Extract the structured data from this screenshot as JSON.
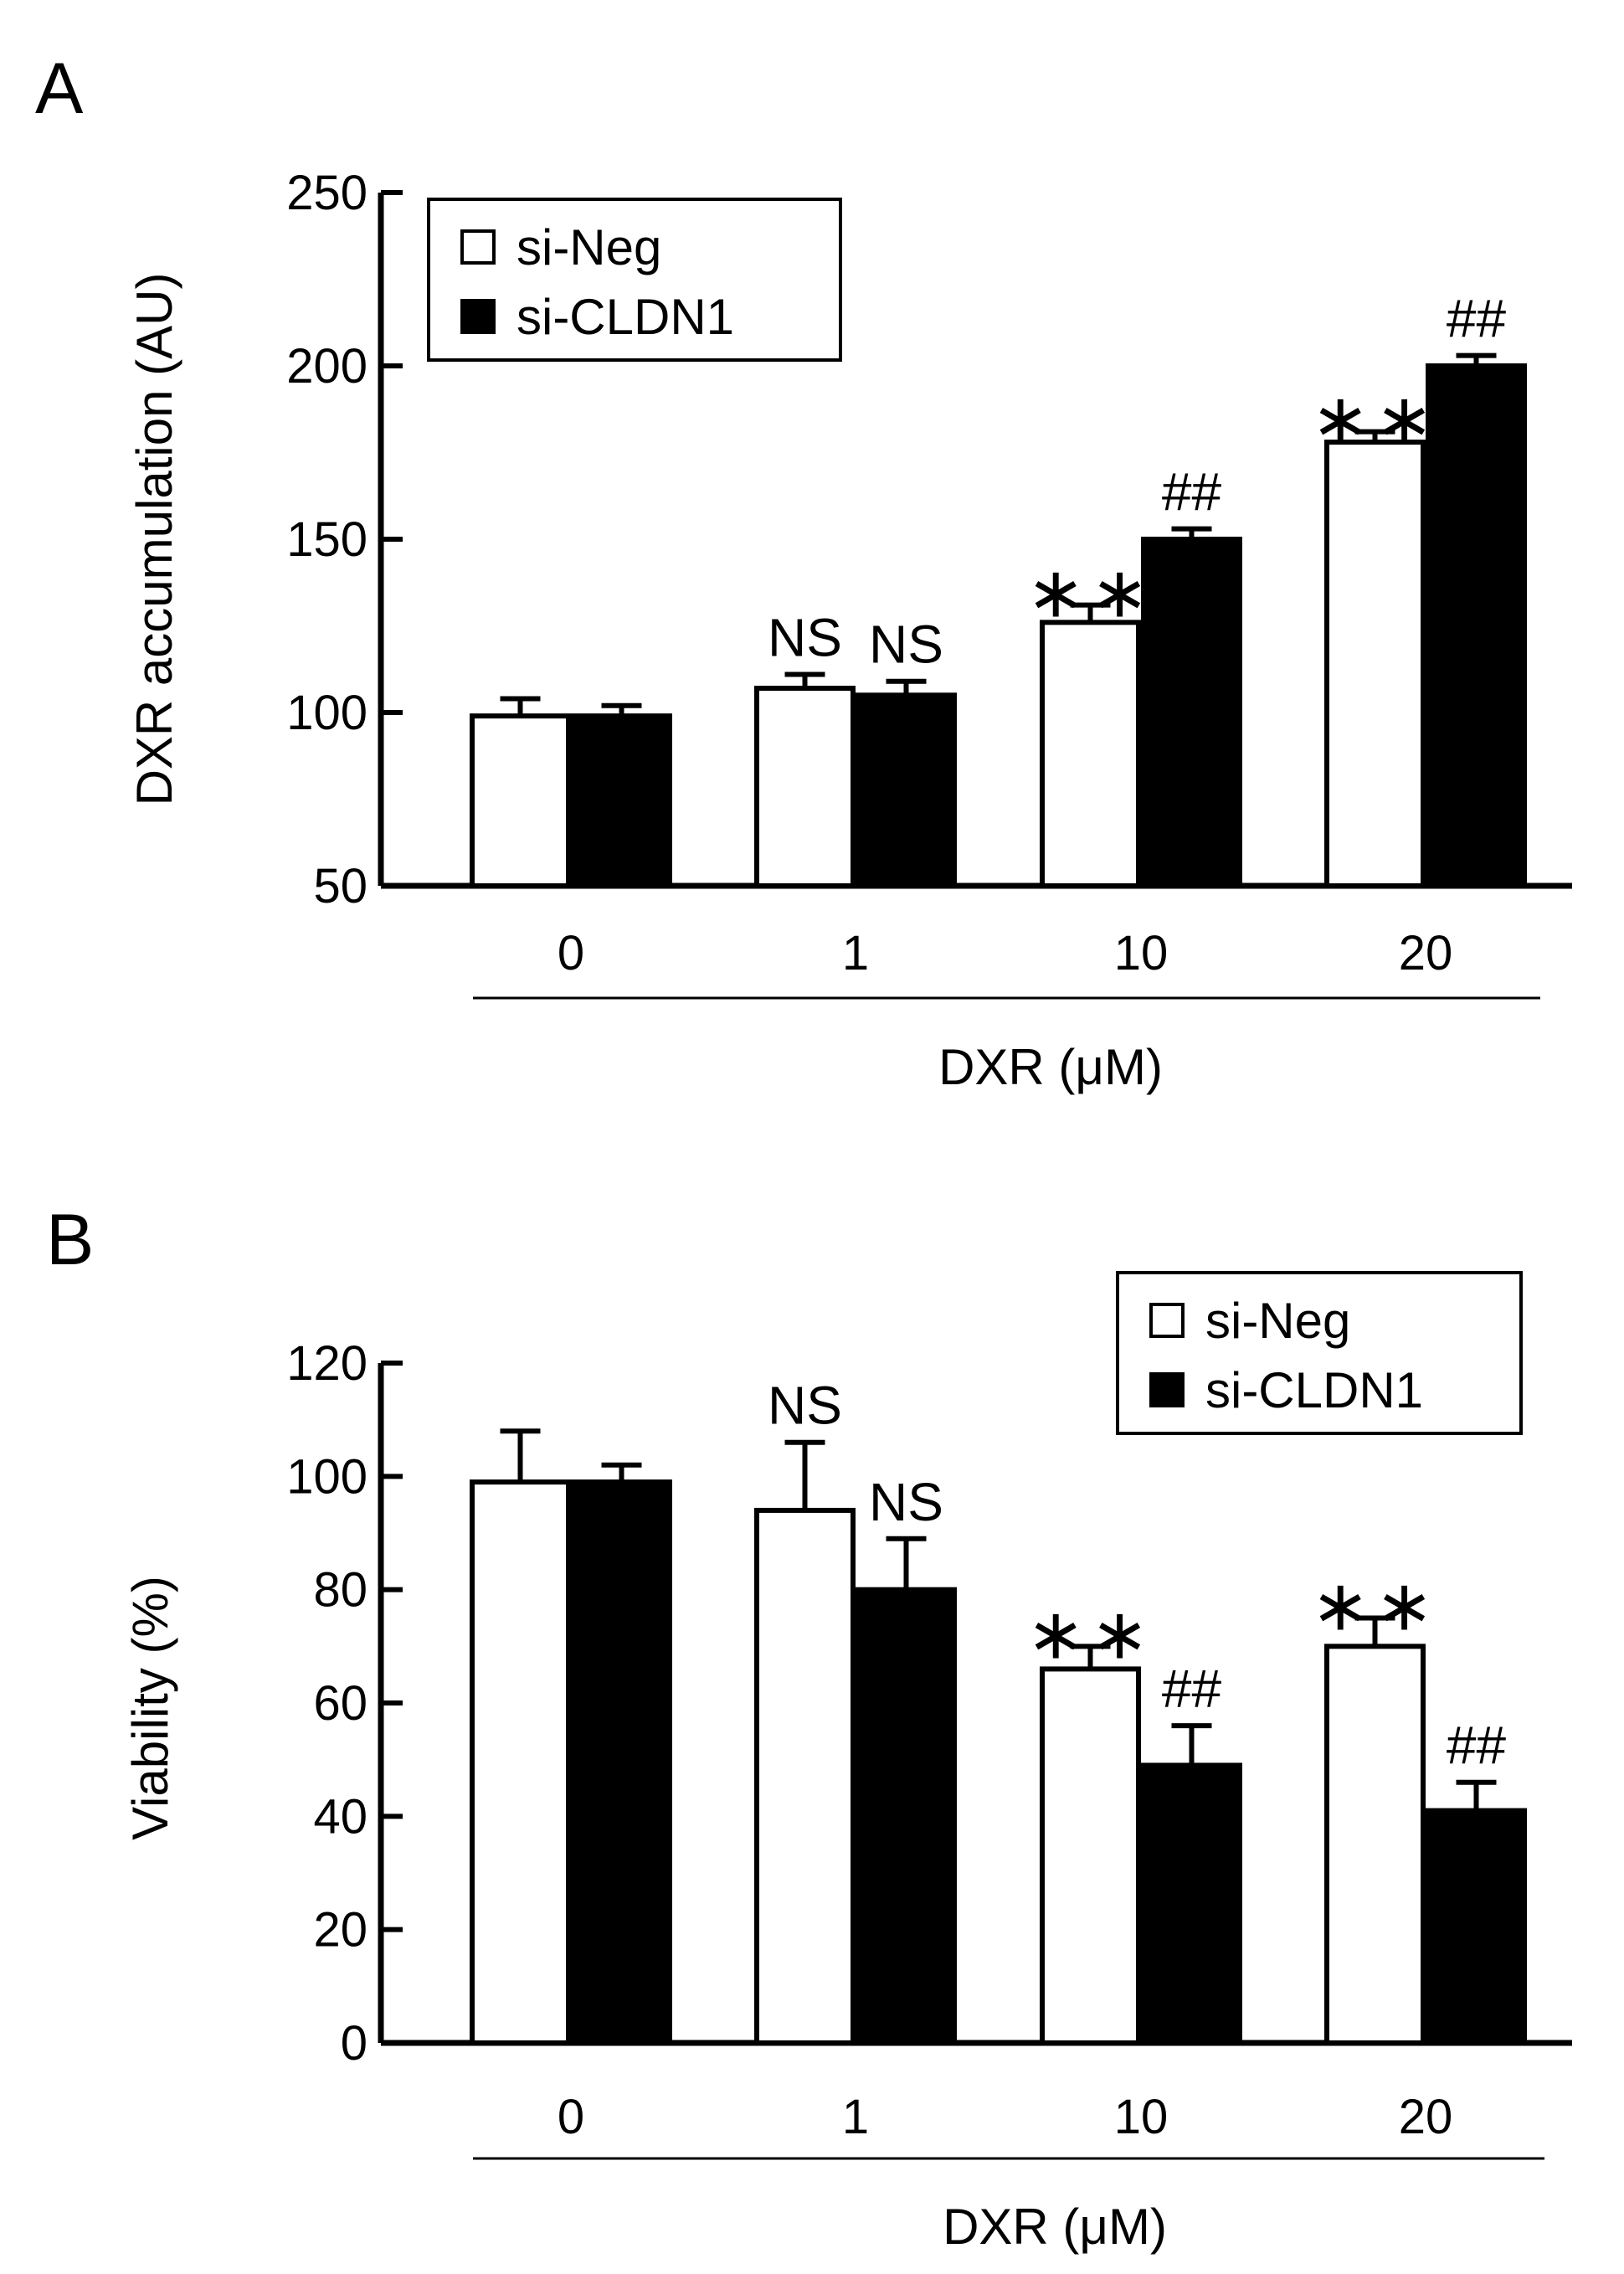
{
  "chart_data": [
    {
      "panel_label": "A",
      "type": "bar",
      "ylabel": "DXR accumulation (AU)",
      "xlabel": "DXR (μM)",
      "ylim": [
        50,
        250
      ],
      "yticks": [
        50,
        100,
        150,
        200,
        250
      ],
      "categories": [
        "0",
        "1",
        "10",
        "20"
      ],
      "series": [
        {
          "name": "si-Neg",
          "fill": "#ffffff",
          "values": [
            99,
            107,
            126,
            178
          ],
          "errors": [
            5,
            4,
            5,
            3
          ],
          "annotations": [
            "",
            "NS",
            "**",
            "**"
          ]
        },
        {
          "name": "si-CLDN1",
          "fill": "#000000",
          "values": [
            99,
            105,
            150,
            200
          ],
          "errors": [
            3,
            4,
            3,
            3
          ],
          "annotations": [
            "",
            "NS",
            "##",
            "##"
          ]
        }
      ],
      "legend_position": "top-left"
    },
    {
      "panel_label": "B",
      "type": "bar",
      "ylabel": "Viability (%)",
      "xlabel": "DXR (μM)",
      "ylim": [
        0,
        120
      ],
      "yticks": [
        0,
        20,
        40,
        60,
        80,
        100,
        120
      ],
      "categories": [
        "0",
        "1",
        "10",
        "20"
      ],
      "series": [
        {
          "name": "si-Neg",
          "fill": "#ffffff",
          "values": [
            99,
            94,
            66,
            70
          ],
          "errors": [
            9,
            12,
            4,
            5
          ],
          "annotations": [
            "",
            "NS",
            "**",
            "**"
          ]
        },
        {
          "name": "si-CLDN1",
          "fill": "#000000",
          "values": [
            99,
            80,
            49,
            41
          ],
          "errors": [
            3,
            9,
            7,
            5
          ],
          "annotations": [
            "",
            "NS",
            "##",
            "##"
          ]
        }
      ],
      "legend_position": "top-right"
    }
  ]
}
